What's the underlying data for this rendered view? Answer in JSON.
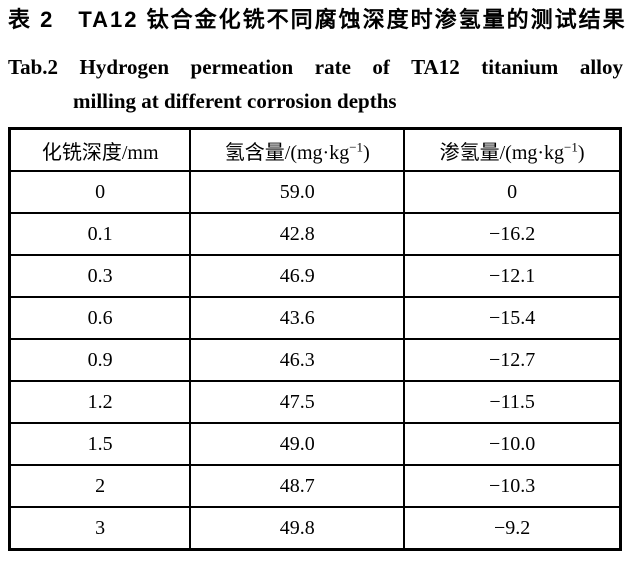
{
  "title": {
    "zh": "表 2　TA12 钛合金化铣不同腐蚀深度时渗氢量的测试结果",
    "en_line1": "Tab.2 Hydrogen permeation rate of TA12 titanium alloy",
    "en_line2": "milling at different corrosion depths"
  },
  "table": {
    "headers": [
      {
        "pre": "化铣深度/mm",
        "sup": "",
        "post": ""
      },
      {
        "pre": "氢含量/(mg·kg",
        "sup": "−1",
        "post": ")"
      },
      {
        "pre": "渗氢量/(mg·kg",
        "sup": "−1",
        "post": ")"
      }
    ],
    "rows": [
      [
        "0",
        "59.0",
        "0"
      ],
      [
        "0.1",
        "42.8",
        "−16.2"
      ],
      [
        "0.3",
        "46.9",
        "−12.1"
      ],
      [
        "0.6",
        "43.6",
        "−15.4"
      ],
      [
        "0.9",
        "46.3",
        "−12.7"
      ],
      [
        "1.2",
        "47.5",
        "−11.5"
      ],
      [
        "1.5",
        "49.0",
        "−10.0"
      ],
      [
        "2",
        "48.7",
        "−10.3"
      ],
      [
        "3",
        "49.8",
        "−9.2"
      ]
    ]
  },
  "chart_data": {
    "type": "table",
    "title": "Tab.2 Hydrogen permeation rate of TA12 titanium alloy milling at different corrosion depths",
    "columns": [
      "化铣深度/mm",
      "氢含量/(mg·kg−1)",
      "渗氢量/(mg·kg−1)"
    ],
    "rows": [
      [
        0,
        59.0,
        0
      ],
      [
        0.1,
        42.8,
        -16.2
      ],
      [
        0.3,
        46.9,
        -12.1
      ],
      [
        0.6,
        43.6,
        -15.4
      ],
      [
        0.9,
        46.3,
        -12.7
      ],
      [
        1.2,
        47.5,
        -11.5
      ],
      [
        1.5,
        49.0,
        -10.0
      ],
      [
        2,
        48.7,
        -10.3
      ],
      [
        3,
        49.8,
        -9.2
      ]
    ],
    "colors": {
      "text": "#000000",
      "border": "#000000",
      "background": "#ffffff"
    }
  }
}
